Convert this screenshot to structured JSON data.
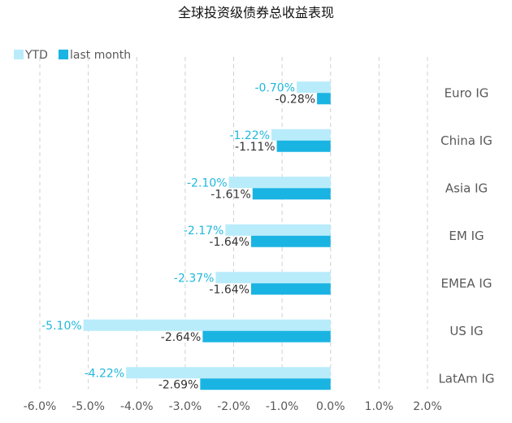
{
  "chart_data": {
    "type": "bar",
    "orientation": "horizontal",
    "title": "全球投资级债券总收益表现",
    "categories": [
      "Euro IG",
      "China IG",
      "Asia IG",
      "EM IG",
      "EMEA IG",
      "US IG",
      "LatAm IG"
    ],
    "series": [
      {
        "name": "YTD",
        "values": [
          -0.7,
          -1.22,
          -2.1,
          -2.17,
          -2.37,
          -5.1,
          -4.22
        ],
        "color": "#b9ecfb",
        "label_color": "#1fb8de"
      },
      {
        "name": "last month",
        "values": [
          -0.28,
          -1.11,
          -1.61,
          -1.64,
          -1.64,
          -2.64,
          -2.69
        ],
        "color": "#1ab4e3",
        "label_color": "#333333"
      }
    ],
    "xlim": [
      -6.0,
      2.0
    ],
    "x_ticks": [
      -6.0,
      -5.0,
      -4.0,
      -3.0,
      -2.0,
      -1.0,
      0.0,
      1.0,
      2.0
    ],
    "x_tick_labels": [
      "-6.0%",
      "-5.0%",
      "-4.0%",
      "-3.0%",
      "-2.0%",
      "-1.0%",
      "0.0%",
      "1.0%",
      "2.0%"
    ],
    "value_format": "percent",
    "xlabel": "",
    "ylabel": "",
    "grid": "vertical-dashed",
    "legend_position": "top-left"
  }
}
